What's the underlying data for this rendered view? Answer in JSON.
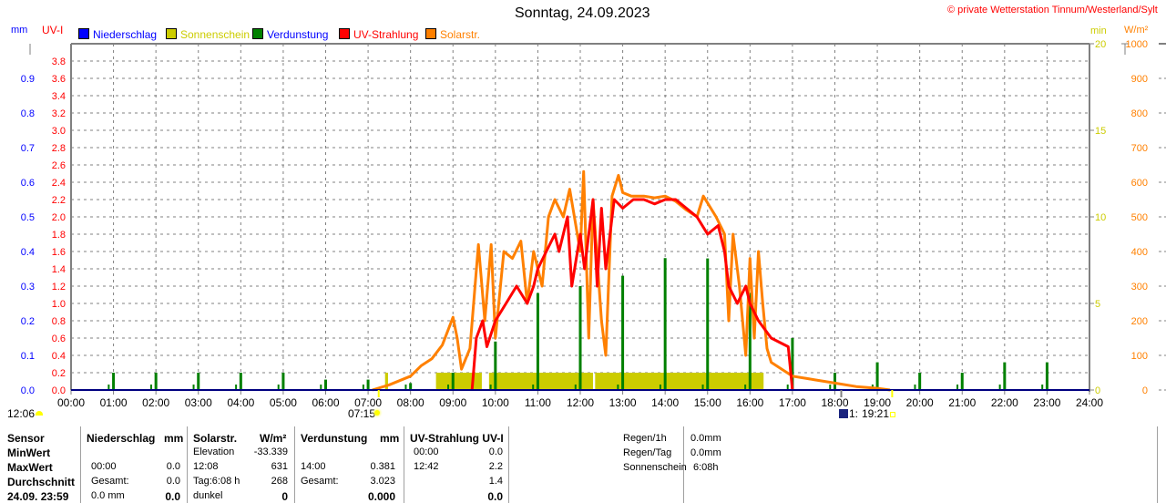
{
  "header": {
    "title": "Sonntag, 24.09.2023",
    "copyright": "© private Wetterstation Tinnum/Westerland/Sylt",
    "unit_mm": "mm",
    "unit_uv": "UV-I",
    "unit_min": "min",
    "unit_wm2": "W/m²"
  },
  "legend": [
    {
      "label": "Niederschlag",
      "color": "#0000ff",
      "text_color": "#0000ff"
    },
    {
      "label": "Sonnenschein",
      "color": "#cccc00",
      "text_color": "#cccc00"
    },
    {
      "label": "Verdunstung",
      "color": "#008000",
      "text_color": "#0000ff"
    },
    {
      "label": "UV-Strahlung",
      "color": "#ff0000",
      "text_color": "#ff0000"
    },
    {
      "label": "Solarstr.",
      "color": "#ff8000",
      "text_color": "#ff8000"
    }
  ],
  "markers": {
    "moonrise": "12:06",
    "sunrise": "07:15",
    "moonset": "1:",
    "sunset": "19:21"
  },
  "chart_data": {
    "type": "line",
    "title": "Sonntag, 24.09.2023",
    "x_ticks": [
      "00:00",
      "01:00",
      "02:00",
      "03:00",
      "04:00",
      "05:00",
      "06:00",
      "07:00",
      "08:00",
      "09:00",
      "10:00",
      "11:00",
      "12:00",
      "13:00",
      "14:00",
      "15:00",
      "16:00",
      "17:00",
      "18:00",
      "19:00",
      "20:00",
      "21:00",
      "22:00",
      "23:00",
      "24:00"
    ],
    "xlim_hours": [
      0,
      24
    ],
    "axes": {
      "mm": {
        "range": [
          0,
          1.0
        ],
        "ticks": [
          "0.0",
          "0.1",
          "0.2",
          "0.3",
          "0.4",
          "0.5",
          "0.6",
          "0.7",
          "0.8",
          "0.9"
        ],
        "color": "#0000ff"
      },
      "uv": {
        "range": [
          0,
          4.0
        ],
        "ticks": [
          "0.0",
          "0.2",
          "0.4",
          "0.6",
          "0.8",
          "1.0",
          "1.2",
          "1.4",
          "1.6",
          "1.8",
          "2.0",
          "2.2",
          "2.4",
          "2.6",
          "2.8",
          "3.0",
          "3.2",
          "3.4",
          "3.6",
          "3.8"
        ],
        "color": "#ff0000"
      },
      "min": {
        "range": [
          0,
          20
        ],
        "ticks": [
          "0",
          "5",
          "10",
          "15",
          "20"
        ],
        "color": "#cccc00"
      },
      "wm2": {
        "range": [
          0,
          1000
        ],
        "ticks": [
          "0",
          "100",
          "200",
          "300",
          "400",
          "500",
          "600",
          "700",
          "800",
          "900",
          "1000"
        ],
        "color": "#ff8000"
      }
    },
    "grid": true,
    "series": [
      {
        "name": "Solarstr.",
        "axis": "wm2",
        "color": "#ff8000",
        "x": [
          7.1,
          7.5,
          8.0,
          8.25,
          8.5,
          8.75,
          9.0,
          9.1,
          9.2,
          9.4,
          9.6,
          9.75,
          9.9,
          10.0,
          10.2,
          10.4,
          10.6,
          10.75,
          10.9,
          11.1,
          11.25,
          11.4,
          11.6,
          11.75,
          12.0,
          12.08,
          12.2,
          12.3,
          12.5,
          12.6,
          12.75,
          12.9,
          13.0,
          13.2,
          13.5,
          13.75,
          14.0,
          14.25,
          14.5,
          14.75,
          14.9,
          15.0,
          15.2,
          15.4,
          15.5,
          15.6,
          15.75,
          15.9,
          16.0,
          16.1,
          16.2,
          16.3,
          16.4,
          16.5,
          16.75,
          17.0,
          17.5,
          18.0,
          18.5,
          19.0,
          19.3
        ],
        "values": [
          0,
          15,
          40,
          70,
          90,
          130,
          210,
          150,
          60,
          120,
          420,
          200,
          420,
          150,
          400,
          380,
          430,
          250,
          400,
          300,
          500,
          550,
          500,
          580,
          400,
          631,
          150,
          550,
          200,
          100,
          560,
          620,
          570,
          560,
          560,
          555,
          560,
          545,
          520,
          500,
          560,
          540,
          500,
          450,
          200,
          450,
          300,
          100,
          380,
          150,
          400,
          250,
          120,
          80,
          60,
          40,
          30,
          20,
          10,
          5,
          0
        ]
      },
      {
        "name": "UV-Strahlung",
        "axis": "uv",
        "color": "#ff0000",
        "x": [
          9.45,
          9.55,
          9.7,
          9.8,
          10.0,
          10.25,
          10.5,
          10.75,
          10.9,
          11.0,
          11.2,
          11.4,
          11.5,
          11.7,
          11.8,
          12.0,
          12.1,
          12.3,
          12.4,
          12.5,
          12.6,
          12.8,
          13.0,
          13.25,
          13.5,
          13.75,
          14.0,
          14.25,
          14.5,
          14.75,
          15.0,
          15.25,
          15.4,
          15.5,
          15.7,
          15.9,
          16.0,
          16.2,
          16.5,
          16.9,
          17.0
        ],
        "values": [
          0,
          0.6,
          0.8,
          0.5,
          0.8,
          1.0,
          1.2,
          1.0,
          1.2,
          1.4,
          1.6,
          1.8,
          1.6,
          2.0,
          1.2,
          1.8,
          1.4,
          2.2,
          1.2,
          2.1,
          1.4,
          2.2,
          2.1,
          2.2,
          2.2,
          2.15,
          2.2,
          2.2,
          2.1,
          2.0,
          1.8,
          1.9,
          1.6,
          1.2,
          1.0,
          1.2,
          1.0,
          0.8,
          0.6,
          0.5,
          0
        ]
      },
      {
        "name": "Verdunstung",
        "axis": "mm",
        "type": "bar",
        "color": "#008000",
        "x": [
          1,
          2,
          3,
          4,
          5,
          6,
          7,
          8,
          9,
          10,
          11,
          12,
          13,
          14,
          15,
          16,
          17,
          18,
          19,
          20,
          21,
          22,
          23
        ],
        "values": [
          0.05,
          0.05,
          0.05,
          0.05,
          0.05,
          0.03,
          0.03,
          0.02,
          0.05,
          0.14,
          0.28,
          0.3,
          0.33,
          0.381,
          0.38,
          0.28,
          0.15,
          0.05,
          0.08,
          0.05,
          0.05,
          0.08,
          0.08
        ]
      },
      {
        "name": "Sonnenschein",
        "axis": "min",
        "type": "bar",
        "color": "#cccc00",
        "blocks": [
          [
            7.4,
            7.47,
            1
          ],
          [
            8.6,
            9.68,
            1
          ],
          [
            9.85,
            12.3,
            1
          ],
          [
            12.35,
            16.32,
            1
          ]
        ]
      },
      {
        "name": "Niederschlag",
        "axis": "mm",
        "type": "bar",
        "color": "#0000ff",
        "values": []
      }
    ]
  },
  "table": {
    "headers": [
      "Sensor",
      "Niederschlag",
      "mm",
      "Solarstr.",
      "W/m²",
      "Verdunstung",
      "mm",
      "UV-Strahlung UV-I"
    ],
    "rows": [
      {
        "label": "MinWert",
        "n1": "",
        "n2": "",
        "s1": "Elevation",
        "s2": "-33.339",
        "v1": "",
        "v2": "",
        "u1": "00:00",
        "u2": "0.0"
      },
      {
        "label": "MaxWert",
        "n1": "00:00",
        "n2": "0.0",
        "s1": "12:08",
        "s2": "631",
        "v1": "14:00",
        "v2": "0.381",
        "u1": "12:42",
        "u2": "2.2"
      },
      {
        "label": "Durchschnitt",
        "n1": "Gesamt:",
        "n2": "0.0",
        "s1": "Tag:6:08 h",
        "s2": "268",
        "v1": "Gesamt:",
        "v2": "3.023",
        "u1": "",
        "u2": "1.4"
      },
      {
        "label": "24.09. 23:59",
        "n1": "0.0 mm",
        "n2": "0.0",
        "s1": "dunkel",
        "s2": "0",
        "v1": "",
        "v2": "0.000",
        "u1": "",
        "u2": "0.0"
      }
    ],
    "summary": [
      {
        "label": "Regen/1h",
        "value": "0.0mm"
      },
      {
        "label": "Regen/Tag",
        "value": "0.0mm"
      },
      {
        "label": "Sonnenschein",
        "value": "6:08h"
      }
    ]
  }
}
